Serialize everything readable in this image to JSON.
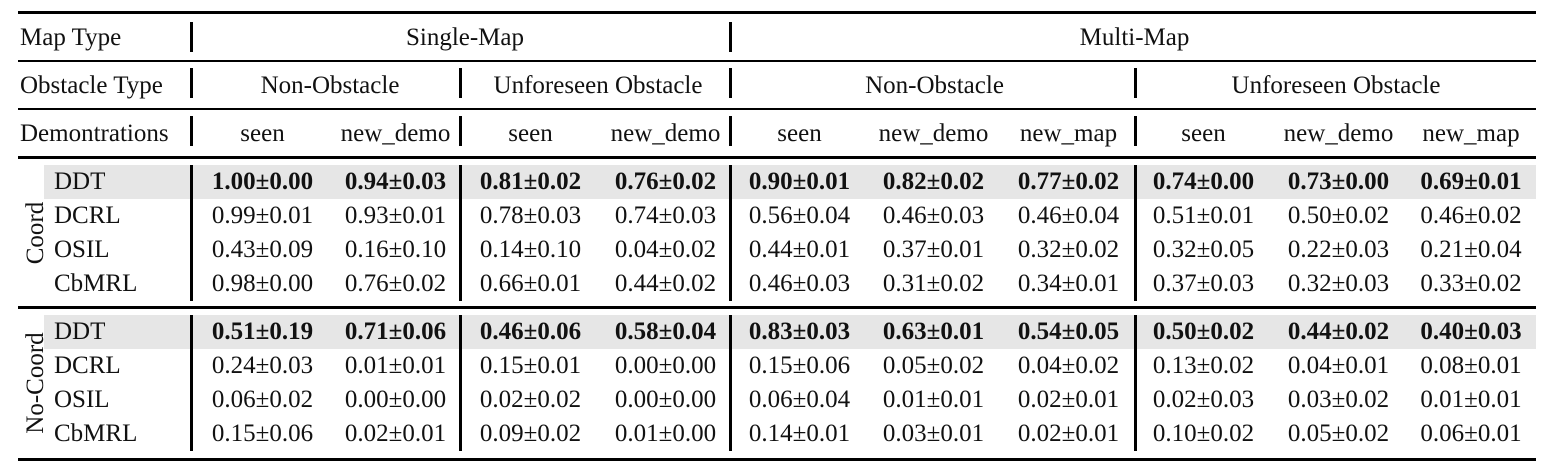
{
  "table": {
    "header": {
      "map_type_label": "Map Type",
      "map_types": [
        "Single-Map",
        "Multi-Map"
      ],
      "obstacle_type_label": "Obstacle Type",
      "obstacle_types": [
        "Non-Obstacle",
        "Unforeseen Obstacle",
        "Non-Obstacle",
        "Unforeseen Obstacle"
      ],
      "demonstrations_label": "Demontrations",
      "demonstrations": [
        "seen",
        "new_demo",
        "seen",
        "new_demo",
        "seen",
        "new_demo",
        "new_map",
        "seen",
        "new_demo",
        "new_map"
      ]
    },
    "groups": [
      {
        "label": "Coord",
        "rows": [
          {
            "method": "DDT",
            "highlight": true,
            "values": [
              "1.00±0.00",
              "0.94±0.03",
              "0.81±0.02",
              "0.76±0.02",
              "0.90±0.01",
              "0.82±0.02",
              "0.77±0.02",
              "0.74±0.00",
              "0.73±0.00",
              "0.69±0.01"
            ]
          },
          {
            "method": "DCRL",
            "highlight": false,
            "values": [
              "0.99±0.01",
              "0.93±0.01",
              "0.78±0.03",
              "0.74±0.03",
              "0.56±0.04",
              "0.46±0.03",
              "0.46±0.04",
              "0.51±0.01",
              "0.50±0.02",
              "0.46±0.02"
            ]
          },
          {
            "method": "OSIL",
            "highlight": false,
            "values": [
              "0.43±0.09",
              "0.16±0.10",
              "0.14±0.10",
              "0.04±0.02",
              "0.44±0.01",
              "0.37±0.01",
              "0.32±0.02",
              "0.32±0.05",
              "0.22±0.03",
              "0.21±0.04"
            ]
          },
          {
            "method": "CbMRL",
            "highlight": false,
            "values": [
              "0.98±0.00",
              "0.76±0.02",
              "0.66±0.01",
              "0.44±0.02",
              "0.46±0.03",
              "0.31±0.02",
              "0.34±0.01",
              "0.37±0.03",
              "0.32±0.03",
              "0.33±0.02"
            ]
          }
        ]
      },
      {
        "label": "No-Coord",
        "rows": [
          {
            "method": "DDT",
            "highlight": true,
            "values": [
              "0.51±0.19",
              "0.71±0.06",
              "0.46±0.06",
              "0.58±0.04",
              "0.83±0.03",
              "0.63±0.01",
              "0.54±0.05",
              "0.50±0.02",
              "0.44±0.02",
              "0.40±0.03"
            ]
          },
          {
            "method": "DCRL",
            "highlight": false,
            "values": [
              "0.24±0.03",
              "0.01±0.01",
              "0.15±0.01",
              "0.00±0.00",
              "0.15±0.06",
              "0.05±0.02",
              "0.04±0.02",
              "0.13±0.02",
              "0.04±0.01",
              "0.08±0.01"
            ]
          },
          {
            "method": "OSIL",
            "highlight": false,
            "values": [
              "0.06±0.02",
              "0.00±0.00",
              "0.02±0.02",
              "0.00±0.00",
              "0.06±0.04",
              "0.01±0.01",
              "0.02±0.01",
              "0.02±0.03",
              "0.03±0.02",
              "0.01±0.01"
            ]
          },
          {
            "method": "CbMRL",
            "highlight": false,
            "values": [
              "0.15±0.06",
              "0.02±0.01",
              "0.09±0.02",
              "0.01±0.00",
              "0.14±0.01",
              "0.03±0.01",
              "0.02±0.01",
              "0.10±0.02",
              "0.05±0.02",
              "0.06±0.01"
            ]
          }
        ]
      }
    ]
  }
}
